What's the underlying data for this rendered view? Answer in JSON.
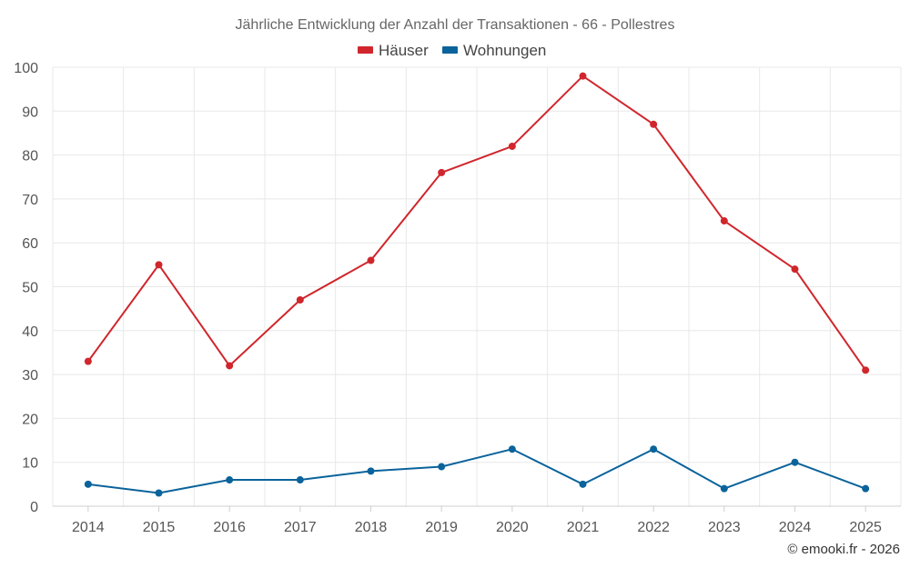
{
  "chart_data": {
    "type": "line",
    "title": "Jährliche Entwicklung der Anzahl der Transaktionen - 66 - Pollestres",
    "categories": [
      "2014",
      "2015",
      "2016",
      "2017",
      "2018",
      "2019",
      "2020",
      "2021",
      "2022",
      "2023",
      "2024",
      "2025"
    ],
    "series": [
      {
        "name": "Häuser",
        "color": "#d0262c",
        "values": [
          33,
          55,
          32,
          47,
          56,
          76,
          82,
          98,
          87,
          65,
          54,
          31
        ]
      },
      {
        "name": "Wohnungen",
        "color": "#0a639b",
        "values": [
          5,
          3,
          6,
          6,
          8,
          9,
          13,
          5,
          13,
          4,
          10,
          4
        ]
      }
    ],
    "ylim": [
      0,
      100
    ],
    "yticks": [
      0,
      10,
      20,
      30,
      40,
      50,
      60,
      70,
      80,
      90,
      100
    ],
    "grid": true,
    "legend": "top-center",
    "xlabel": "",
    "ylabel": ""
  },
  "credit": "© emooki.fr - 2026"
}
